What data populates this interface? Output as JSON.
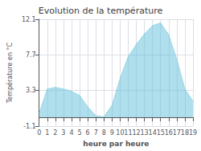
{
  "chart_data": {
    "type": "area",
    "title": "Evolution de la température",
    "xlabel": "heure par heure",
    "ylabel": "Température en °C",
    "x": [
      0,
      1,
      2,
      3,
      4,
      5,
      6,
      7,
      8,
      9,
      10,
      11,
      12,
      13,
      14,
      15,
      16,
      17,
      18,
      19
    ],
    "values": [
      0.5,
      3.5,
      3.7,
      3.5,
      3.2,
      2.7,
      1.3,
      0.2,
      0.05,
      1.5,
      4.8,
      7.5,
      9.0,
      10.3,
      11.3,
      11.65,
      10.2,
      7.2,
      3.5,
      2.0
    ],
    "color": "#60c0dc",
    "line_style": "dotted",
    "xlim": [
      0,
      19
    ],
    "xticks": [
      0,
      1,
      2,
      3,
      4,
      5,
      6,
      7,
      8,
      9,
      10,
      11,
      12,
      13,
      14,
      15,
      16,
      17,
      18,
      19
    ],
    "ylim": [
      -1.1,
      12.1
    ],
    "yticks": [
      -1.1,
      3.3,
      7.7,
      12.1
    ],
    "grid": true
  }
}
